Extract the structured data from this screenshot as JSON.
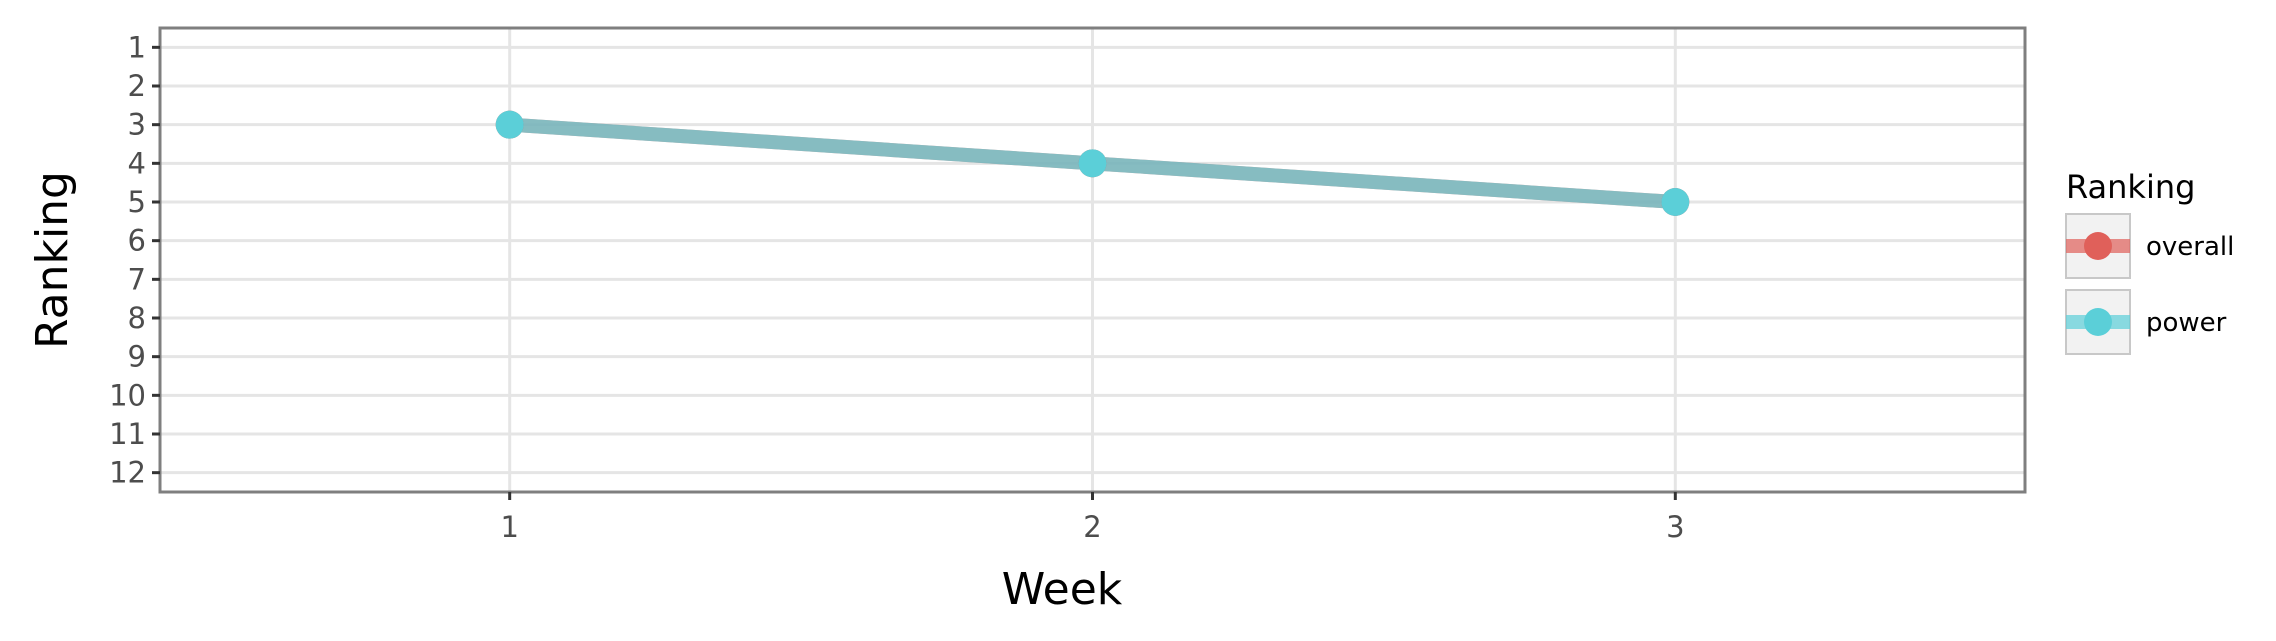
{
  "chart_data": {
    "type": "line",
    "title": "",
    "xlabel": "Week",
    "ylabel": "Ranking",
    "x": [
      1,
      2,
      3
    ],
    "x_ticks": [
      "1",
      "2",
      "3"
    ],
    "xlim": [
      0.4,
      3.6
    ],
    "y_ticks": [
      "1",
      "2",
      "3",
      "4",
      "5",
      "6",
      "7",
      "8",
      "9",
      "10",
      "11",
      "12"
    ],
    "ylim": [
      12.5,
      0.5
    ],
    "y_reversed": true,
    "grid": true,
    "legend": {
      "title": "Ranking",
      "placement": "right"
    },
    "series": [
      {
        "name": "overall",
        "color": "#e0605a",
        "values": [
          3,
          4,
          5
        ]
      },
      {
        "name": "power",
        "color": "#5bcfd8",
        "values": [
          3,
          4,
          5
        ]
      }
    ]
  }
}
